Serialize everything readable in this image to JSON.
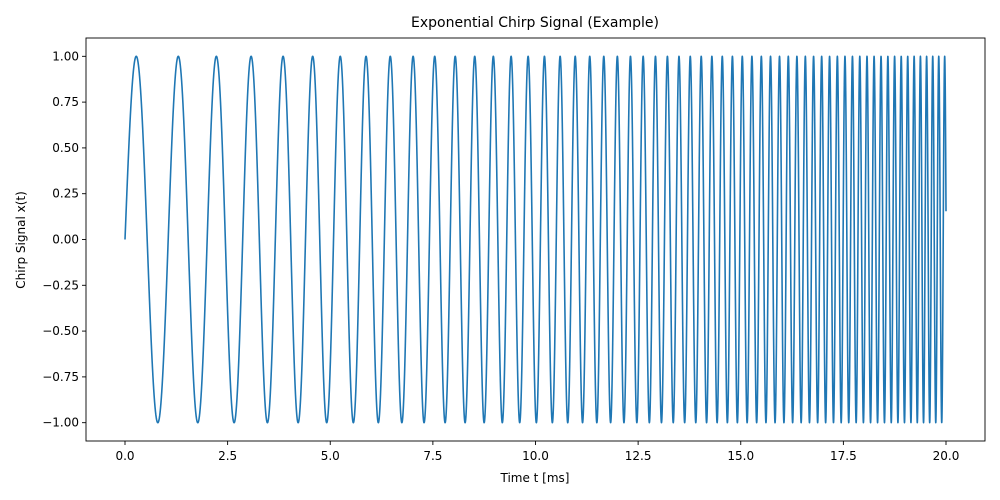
{
  "chart_data": {
    "type": "line",
    "title": "Exponential Chirp Signal (Example)",
    "xlabel": "Time t [ms]",
    "ylabel": "Chirp Signal x(t)",
    "xlim": [
      -0.95,
      20.95
    ],
    "ylim": [
      -1.1,
      1.1
    ],
    "x_ticks": [
      0.0,
      2.5,
      5.0,
      7.5,
      10.0,
      12.5,
      15.0,
      17.5,
      20.0
    ],
    "x_tick_labels": [
      "0.0",
      "2.5",
      "5.0",
      "7.5",
      "10.0",
      "12.5",
      "15.0",
      "17.5",
      "20.0"
    ],
    "y_ticks": [
      1.0,
      0.75,
      0.5,
      0.25,
      0.0,
      -0.25,
      -0.5,
      -0.75,
      -1.0
    ],
    "y_tick_labels": [
      "1.00",
      "0.75",
      "0.50",
      "0.25",
      "0.00",
      "−0.25",
      "−0.50",
      "−0.75",
      "−1.00"
    ],
    "grid": false,
    "series": [
      {
        "color": "#1f77b4",
        "signal": "sin(2*pi*phase(t))",
        "t_range": [
          0,
          20
        ],
        "start_frequency_per_ms": 0.9,
        "end_frequency_per_ms": 7.0,
        "value_at_t0": 0.0,
        "y_range": [
          -1.0,
          1.0
        ]
      }
    ]
  }
}
